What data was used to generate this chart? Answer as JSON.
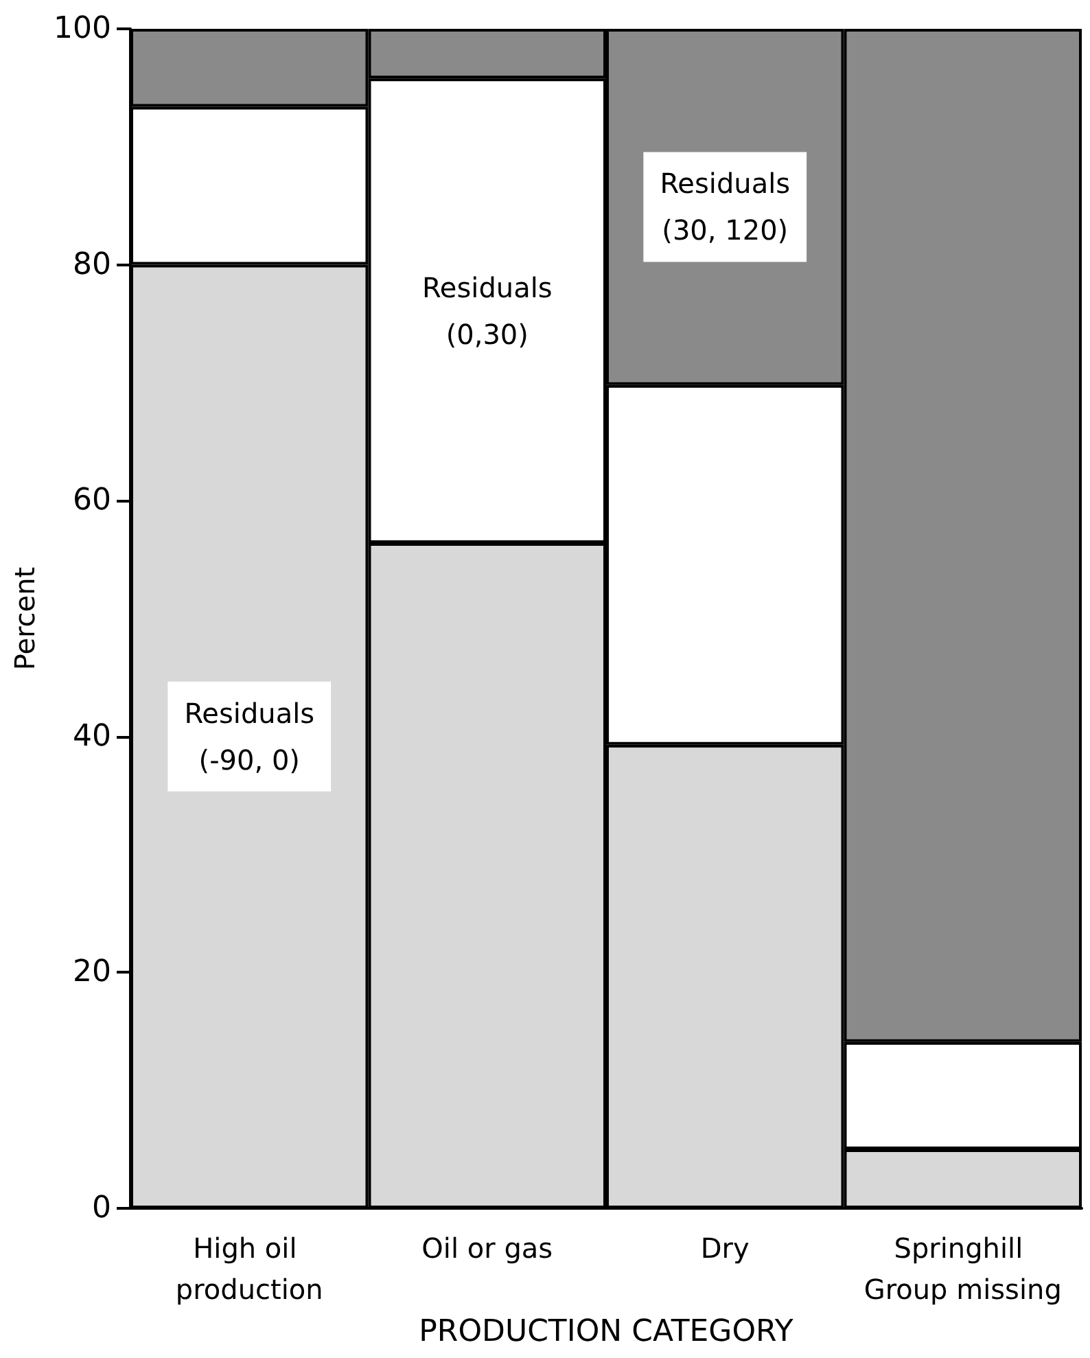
{
  "chart_data": {
    "type": "bar",
    "stacked": true,
    "xlabel": "PRODUCTION CATEGORY",
    "ylabel": "Percent",
    "categories": [
      "High oil production",
      "Oil or gas",
      "Dry",
      "Springhill Group missing"
    ],
    "series": [
      {
        "color": "#d8d8d8",
        "values": [
          80,
          56.4,
          39.3,
          5.0
        ]
      },
      {
        "color": "#ffffff",
        "values": [
          13.4,
          39.4,
          30.5,
          9.1
        ]
      },
      {
        "color": "#8a8a8a",
        "values": [
          6.6,
          4.2,
          30.2,
          85.9
        ]
      }
    ],
    "annotations": [
      "Residuals\n(-90, 0)",
      "Residuals\n(0,30)",
      "Residuals\n(30, 120)"
    ],
    "ylim": [
      0,
      100
    ],
    "yticks": [
      0,
      20,
      40,
      60,
      80,
      100
    ],
    "grid": false
  }
}
